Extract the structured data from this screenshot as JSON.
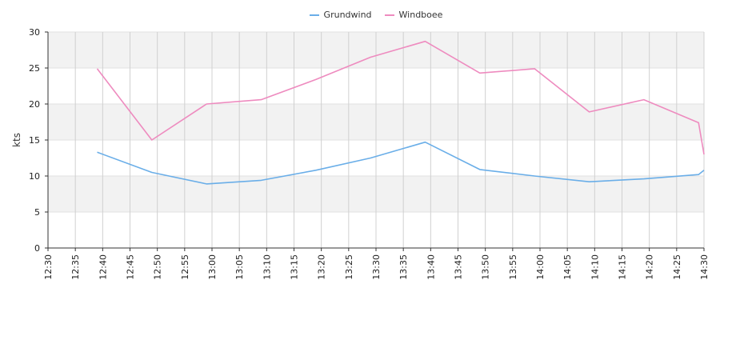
{
  "chart_data": {
    "type": "line",
    "xlabel": "",
    "ylabel": "kts",
    "ylim": [
      0,
      30
    ],
    "yticks": [
      0,
      5,
      10,
      15,
      20,
      25,
      30
    ],
    "xticks": [
      "12:30",
      "12:35",
      "12:40",
      "12:45",
      "12:50",
      "12:55",
      "13:00",
      "13:05",
      "13:10",
      "13:15",
      "13:20",
      "13:25",
      "13:30",
      "13:35",
      "13:40",
      "13:45",
      "13:50",
      "13:55",
      "14:00",
      "14:05",
      "14:10",
      "14:15",
      "14:20",
      "14:25",
      "14:30"
    ],
    "xrange_minutes": [
      0,
      120
    ],
    "grid": true,
    "legend_position": "top-center",
    "series": [
      {
        "name": "Grundwind",
        "color": "#6aaee8",
        "points": [
          {
            "x": "12:39",
            "y": 13.3
          },
          {
            "x": "12:49",
            "y": 10.5
          },
          {
            "x": "12:59",
            "y": 8.9
          },
          {
            "x": "13:09",
            "y": 9.4
          },
          {
            "x": "13:19",
            "y": 10.8
          },
          {
            "x": "13:29",
            "y": 12.5
          },
          {
            "x": "13:39",
            "y": 14.7
          },
          {
            "x": "13:49",
            "y": 10.9
          },
          {
            "x": "13:59",
            "y": 10.0
          },
          {
            "x": "14:09",
            "y": 9.2
          },
          {
            "x": "14:19",
            "y": 9.6
          },
          {
            "x": "14:29",
            "y": 10.2
          },
          {
            "x": "14:30",
            "y": 10.8
          }
        ]
      },
      {
        "name": "Windboee",
        "color": "#ee8bbf",
        "points": [
          {
            "x": "12:39",
            "y": 24.9
          },
          {
            "x": "12:49",
            "y": 15.0
          },
          {
            "x": "12:59",
            "y": 20.0
          },
          {
            "x": "13:09",
            "y": 20.6
          },
          {
            "x": "13:19",
            "y": 23.4
          },
          {
            "x": "13:29",
            "y": 26.5
          },
          {
            "x": "13:39",
            "y": 28.7
          },
          {
            "x": "13:49",
            "y": 24.3
          },
          {
            "x": "13:59",
            "y": 24.9
          },
          {
            "x": "14:09",
            "y": 18.9
          },
          {
            "x": "14:19",
            "y": 20.6
          },
          {
            "x": "14:29",
            "y": 17.4
          },
          {
            "x": "14:30",
            "y": 13.0
          }
        ]
      }
    ]
  }
}
